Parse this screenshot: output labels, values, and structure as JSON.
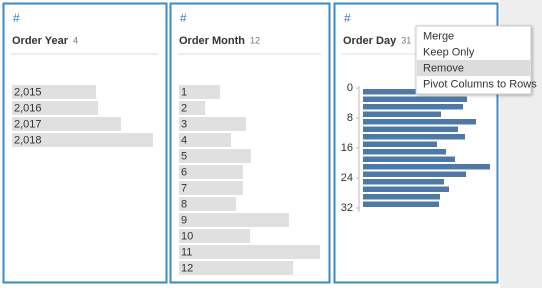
{
  "cards": [
    {
      "icon": "#",
      "title": "Order Year",
      "count": 4,
      "rows": [
        {
          "label": "2,015",
          "value": 84
        },
        {
          "label": "2,016",
          "value": 86
        },
        {
          "label": "2,017",
          "value": 109
        },
        {
          "label": "2,018",
          "value": 141
        }
      ]
    },
    {
      "icon": "#",
      "title": "Order Month",
      "count": 12,
      "rows": [
        {
          "label": "1",
          "value": 41
        },
        {
          "label": "2",
          "value": 26
        },
        {
          "label": "3",
          "value": 67
        },
        {
          "label": "4",
          "value": 52
        },
        {
          "label": "5",
          "value": 72
        },
        {
          "label": "6",
          "value": 64
        },
        {
          "label": "7",
          "value": 64
        },
        {
          "label": "8",
          "value": 57
        },
        {
          "label": "9",
          "value": 110
        },
        {
          "label": "10",
          "value": 71
        },
        {
          "label": "11",
          "value": 141
        },
        {
          "label": "12",
          "value": 114
        }
      ]
    },
    {
      "icon": "#",
      "title": "Order Day",
      "count": 31,
      "histogram": {
        "bins": [
          0,
          2,
          4,
          6,
          8,
          10,
          12,
          14,
          16,
          18,
          20,
          22,
          24,
          26,
          28,
          30,
          32
        ],
        "values": [
          77,
          104,
          100,
          78,
          113,
          95,
          102,
          74,
          83,
          92,
          127,
          103,
          81,
          86,
          77,
          76
        ],
        "yticks": [
          0,
          8,
          16,
          24,
          32
        ],
        "ylim": [
          0,
          32
        ]
      }
    }
  ],
  "context_menu": {
    "items": [
      "Merge",
      "Keep Only",
      "Remove",
      "Pivot Columns to Rows"
    ],
    "highlighted": 2
  }
}
